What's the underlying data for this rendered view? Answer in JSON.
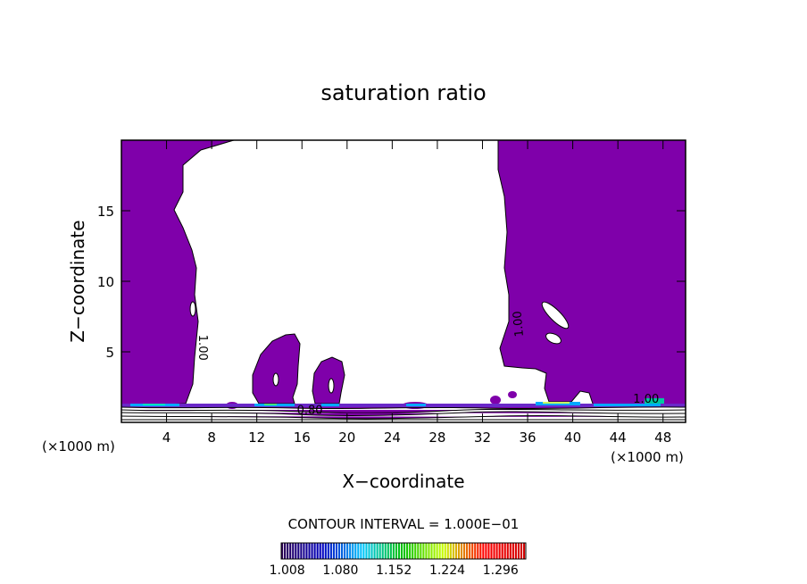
{
  "chart_data": {
    "type": "contour",
    "title": "saturation ratio",
    "xlabel": "X−coordinate",
    "ylabel": "Z−coordinate",
    "x_unit_left": "(×1000 m)",
    "x_unit_right": "(×1000 m)",
    "xlim": [
      0,
      50
    ],
    "ylim": [
      0,
      20
    ],
    "x_ticks": [
      4,
      8,
      12,
      16,
      20,
      24,
      28,
      32,
      36,
      40,
      44,
      48
    ],
    "y_ticks": [
      5,
      10,
      15
    ],
    "x_tick_labels": [
      "4",
      "8",
      "12",
      "16",
      "20",
      "24",
      "28",
      "32",
      "36",
      "40",
      "44",
      "48"
    ],
    "y_tick_labels": [
      "5",
      "10",
      "15"
    ],
    "contour_labels": [
      {
        "text": "1.00",
        "x": 6.9,
        "y": 5.3,
        "angle": 90
      },
      {
        "text": "1.00",
        "x": 35.5,
        "y": 7.0,
        "angle": -95
      },
      {
        "text": "0.80",
        "x": 16.7,
        "y": 0.6,
        "angle": 0
      },
      {
        "text": "1.00",
        "x": 46.5,
        "y": 1.4,
        "angle": 0
      }
    ],
    "fill_color": "#7f00aa",
    "contour_interval_text": "CONTOUR INTERVAL = 1.000E−01",
    "colorbar": {
      "tick_labels": [
        "1.008",
        "1.080",
        "1.152",
        "1.224",
        "1.296"
      ],
      "range": [
        1.0,
        1.33
      ],
      "colors": [
        "#2a0055",
        "#0000c0",
        "#00c8ff",
        "#00c000",
        "#c8ff00",
        "#ff0000",
        "#d00000"
      ]
    }
  }
}
